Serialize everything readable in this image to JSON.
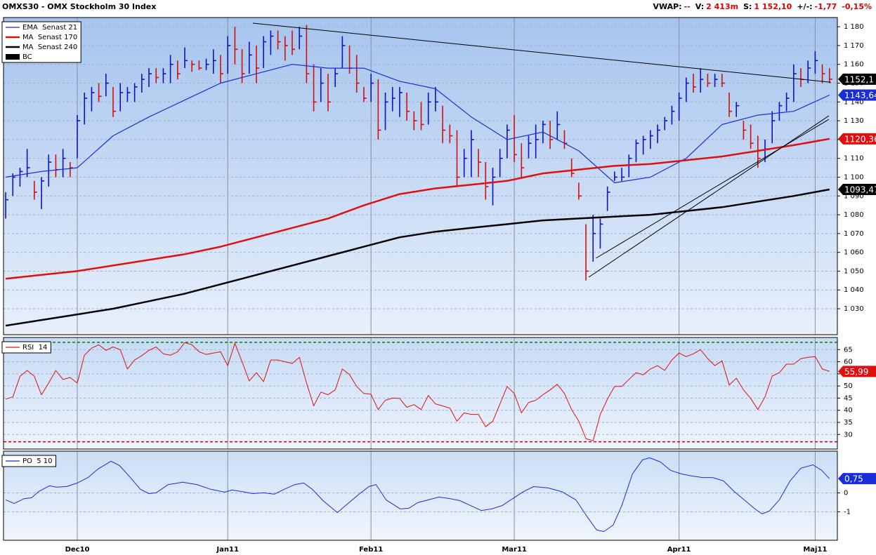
{
  "header": {
    "title": "OMXS30 - OMX Stockholm 30 Index",
    "stats": [
      {
        "label": "VWAP:",
        "value": "--"
      },
      {
        "label": "V:",
        "value": "2 413m"
      },
      {
        "label": "S:",
        "value": "1 152,10"
      },
      {
        "label": "+/-:",
        "value": "-1,77"
      },
      {
        "value": "-0,15%"
      }
    ]
  },
  "chart_data": [
    {
      "type": "hlc",
      "xlim": [
        -0.3,
        116.1
      ],
      "xticks": [
        {
          "value": 10,
          "label": "Dec10"
        },
        {
          "value": 31,
          "label": "Jan11"
        },
        {
          "value": 51,
          "label": "Feb11"
        },
        {
          "value": 71,
          "label": "Mar11"
        },
        {
          "value": 94,
          "label": "Apr11"
        },
        {
          "value": 113,
          "label": "Maj11"
        }
      ],
      "ylim": [
        1016.2,
        1184.9
      ],
      "yticks": [
        {
          "value": 1030,
          "label": "1 030"
        },
        {
          "value": 1040,
          "label": "1 040"
        },
        {
          "value": 1050,
          "label": "1 050"
        },
        {
          "value": 1060,
          "label": "1 060"
        },
        {
          "value": 1070,
          "label": "1 070"
        },
        {
          "value": 1080,
          "label": "1 080"
        },
        {
          "value": 1090,
          "label": "1 090"
        },
        {
          "value": 1100,
          "label": "1 100"
        },
        {
          "value": 1110,
          "label": "1 110"
        },
        {
          "value": 1120,
          "label": "1 120"
        },
        {
          "value": 1130,
          "label": "1 130"
        },
        {
          "value": 1140,
          "label": "1 140"
        },
        {
          "value": 1150,
          "label": "1 150"
        },
        {
          "value": 1160,
          "label": "1 160"
        },
        {
          "value": 1170,
          "label": "1 170"
        },
        {
          "value": 1180,
          "label": "1 180"
        }
      ],
      "grid": true,
      "legend": "upper left",
      "series": [
        {
          "name": "EMA  Senast 21",
          "color": "#1a2ed8",
          "width": 1.2,
          "x": [
            0,
            5,
            10,
            15,
            20,
            25,
            30,
            35,
            40,
            45,
            50,
            55,
            60,
            65,
            70,
            75,
            80,
            85,
            90,
            95,
            100,
            105,
            110,
            115
          ],
          "values": [
            1100,
            1103,
            1105,
            1122,
            1132,
            1141,
            1150,
            1155,
            1160,
            1158,
            1158,
            1151,
            1147,
            1132,
            1120,
            1124,
            1114,
            1097,
            1100,
            1110,
            1128,
            1133,
            1135,
            1143.64
          ]
        },
        {
          "name": "MA  Senast 170",
          "color": "#e01010",
          "width": 2.5,
          "x": [
            0,
            5,
            10,
            15,
            20,
            25,
            30,
            35,
            40,
            45,
            50,
            55,
            60,
            65,
            70,
            75,
            80,
            85,
            90,
            95,
            100,
            105,
            110,
            115
          ],
          "values": [
            1046,
            1048,
            1050,
            1053,
            1056,
            1059,
            1063,
            1068,
            1073,
            1078,
            1085,
            1091,
            1094,
            1096,
            1098,
            1102,
            1104,
            1106,
            1107,
            1109,
            1111,
            1114,
            1117,
            1120.36
          ]
        },
        {
          "name": "MA  Senast 240",
          "color": "#000000",
          "width": 2.5,
          "x": [
            0,
            5,
            10,
            15,
            20,
            25,
            30,
            35,
            40,
            45,
            50,
            55,
            60,
            65,
            70,
            75,
            80,
            85,
            90,
            95,
            100,
            105,
            110,
            115
          ],
          "values": [
            1021,
            1024,
            1027,
            1030,
            1034,
            1038,
            1043,
            1048,
            1053,
            1058,
            1063,
            1068,
            1071,
            1073,
            1075,
            1077,
            1078,
            1079,
            1080,
            1082,
            1084,
            1087,
            1090,
            1093.47
          ]
        }
      ],
      "bars": {
        "name": "BC",
        "color": "#000000",
        "up_color": "#1010c8",
        "down_color": "#d01010",
        "high": [
          1092,
          1102,
          1105,
          1115,
          1098,
          1100,
          1112,
          1112,
          1115,
          1108,
          1133,
          1145,
          1148,
          1150,
          1155,
          1148,
          1150,
          1148,
          1150,
          1155,
          1158,
          1158,
          1158,
          1165,
          1162,
          1169,
          1162,
          1162,
          1163,
          1168,
          1165,
          1175,
          1180,
          1168,
          1172,
          1170,
          1175,
          1178,
          1178,
          1175,
          1178,
          1180,
          1181,
          1160,
          1158,
          1155,
          1158,
          1175,
          1170,
          1165,
          1148,
          1155,
          1152,
          1145,
          1148,
          1148,
          1145,
          1135,
          1140,
          1145,
          1148,
          1138,
          1128,
          1125,
          1115,
          1125,
          1115,
          1108,
          1105,
          1115,
          1128,
          1133,
          1118,
          1122,
          1128,
          1130,
          1130,
          1135,
          1125,
          1110,
          1097,
          1075,
          1080,
          1078,
          1095,
          1103,
          1105,
          1112,
          1120,
          1122,
          1125,
          1128,
          1132,
          1138,
          1145,
          1153,
          1155,
          1158,
          1155,
          1155,
          1155,
          1145,
          1140,
          1130,
          1128,
          1122,
          1120,
          1135,
          1140,
          1145,
          1160,
          1158,
          1162,
          1167,
          1160,
          1158
        ],
        "low": [
          1078,
          1090,
          1095,
          1100,
          1088,
          1083,
          1095,
          1100,
          1100,
          1100,
          1110,
          1128,
          1135,
          1140,
          1143,
          1132,
          1135,
          1140,
          1140,
          1145,
          1148,
          1150,
          1150,
          1150,
          1152,
          1158,
          1156,
          1157,
          1157,
          1155,
          1150,
          1155,
          1160,
          1150,
          1155,
          1150,
          1158,
          1165,
          1168,
          1162,
          1165,
          1168,
          1150,
          1135,
          1140,
          1135,
          1148,
          1158,
          1155,
          1145,
          1140,
          1140,
          1120,
          1125,
          1135,
          1132,
          1130,
          1125,
          1125,
          1128,
          1135,
          1118,
          1118,
          1095,
          1100,
          1100,
          1100,
          1088,
          1085,
          1100,
          1110,
          1108,
          1100,
          1110,
          1110,
          1118,
          1115,
          1120,
          1115,
          1100,
          1088,
          1045,
          1055,
          1062,
          1082,
          1098,
          1098,
          1100,
          1108,
          1112,
          1115,
          1118,
          1125,
          1128,
          1130,
          1140,
          1145,
          1145,
          1148,
          1148,
          1148,
          1132,
          1132,
          1120,
          1115,
          1105,
          1108,
          1118,
          1130,
          1135,
          1140,
          1148,
          1150,
          1155,
          1150,
          1150
        ],
        "close": [
          1088,
          1100,
          1103,
          1105,
          1092,
          1098,
          1108,
          1104,
          1110,
          1105,
          1130,
          1142,
          1145,
          1143,
          1150,
          1135,
          1145,
          1145,
          1148,
          1152,
          1155,
          1153,
          1155,
          1160,
          1155,
          1162,
          1160,
          1158,
          1160,
          1162,
          1155,
          1170,
          1168,
          1155,
          1165,
          1158,
          1172,
          1175,
          1172,
          1170,
          1168,
          1175,
          1155,
          1140,
          1150,
          1140,
          1155,
          1170,
          1158,
          1150,
          1142,
          1150,
          1125,
          1140,
          1142,
          1145,
          1135,
          1130,
          1128,
          1140,
          1140,
          1125,
          1122,
          1100,
          1110,
          1120,
          1108,
          1095,
          1100,
          1110,
          1125,
          1112,
          1105,
          1118,
          1120,
          1128,
          1120,
          1128,
          1118,
          1102,
          1090,
          1050,
          1070,
          1075,
          1092,
          1100,
          1100,
          1110,
          1118,
          1120,
          1122,
          1125,
          1130,
          1135,
          1142,
          1150,
          1148,
          1152,
          1150,
          1152,
          1150,
          1135,
          1138,
          1125,
          1118,
          1110,
          1115,
          1130,
          1138,
          1142,
          1155,
          1152,
          1158,
          1162,
          1155,
          1152.1
        ]
      },
      "trendlines": [
        {
          "color": "#000000",
          "x": [
            34.5,
            115.2
          ],
          "values": [
            1181.9,
            1150.5
          ]
        },
        {
          "color": "#000000",
          "x": [
            81.4,
            114.9
          ],
          "values": [
            1046.8,
            1132.6
          ]
        },
        {
          "color": "#000000",
          "x": [
            82.4,
            114.9
          ],
          "values": [
            1056.9,
            1130.7
          ]
        }
      ],
      "markers": [
        {
          "value": 1152.1,
          "label": "1152,1",
          "color": "#000000"
        },
        {
          "value": 1143.64,
          "label": "1143,64",
          "color": "#1a2ed8"
        },
        {
          "value": 1120.36,
          "label": "1120,36",
          "color": "#e01010"
        },
        {
          "value": 1093.47,
          "label": "1093,47",
          "color": "#000000"
        }
      ]
    },
    {
      "type": "line",
      "ylim": [
        24,
        70
      ],
      "yticks": [
        30,
        35,
        40,
        45,
        50,
        55,
        60,
        65
      ],
      "grid": true,
      "legend": "upper left",
      "levels": [
        {
          "value": 68,
          "color": "#008000"
        },
        {
          "value": 27,
          "color": "#d00000"
        }
      ],
      "series": [
        {
          "name": "RSI  14",
          "color": "#e01010",
          "width": 1,
          "values": [
            44.6,
            45.5,
            54,
            56.4,
            54,
            46.4,
            51.2,
            56.4,
            52.7,
            53.5,
            51.2,
            62.7,
            65.6,
            67,
            64.7,
            66.1,
            65,
            57,
            60.7,
            62.5,
            64.7,
            66.1,
            63.3,
            62.7,
            64.1,
            67.9,
            67,
            64.1,
            63,
            63.6,
            64.1,
            58.4,
            67.6,
            60,
            52.1,
            55.5,
            51.8,
            60.7,
            60.7,
            60,
            59.3,
            61.8,
            51.2,
            41.8,
            47.5,
            46.4,
            48.4,
            57,
            54.7,
            49.8,
            46.9,
            46.6,
            40.3,
            44.1,
            45,
            44.9,
            41.2,
            42.3,
            40.3,
            46.1,
            42.6,
            41.8,
            40.9,
            35.5,
            38.9,
            38.3,
            38.3,
            33.2,
            35.5,
            42.6,
            49.8,
            46.9,
            38.9,
            43.2,
            44.1,
            46.4,
            48.4,
            50.7,
            46.9,
            40.3,
            35.5,
            28.3,
            27.4,
            38.3,
            44.6,
            49.8,
            49.8,
            52.7,
            55.5,
            54.6,
            57,
            58.4,
            56.4,
            60.7,
            63.6,
            62.1,
            63.3,
            65,
            61.3,
            58.4,
            60.4,
            50.4,
            53.2,
            48.4,
            44.9,
            40.3,
            45.5,
            54.1,
            55.5,
            59,
            59,
            61.3,
            61.8,
            62.1,
            57,
            55.99
          ]
        }
      ],
      "markers": [
        {
          "value": 55.99,
          "label": "55,99",
          "color": "#e01010"
        }
      ]
    },
    {
      "type": "line",
      "ylim": [
        -2.5,
        2.2
      ],
      "yticks": [
        0,
        -1
      ],
      "grid": true,
      "legend": "upper left",
      "series": [
        {
          "name": "PO  5 10",
          "color": "#1a2ed8",
          "width": 1,
          "x": [
            0,
            1.2,
            2.6,
            3.6,
            4.6,
            6.1,
            7.1,
            8.5,
            10,
            11.5,
            12.9,
            14.7,
            15.9,
            17.4,
            18.8,
            20,
            21,
            22.7,
            24.7,
            26.7,
            28.6,
            30.6,
            31.6,
            33,
            34.5,
            36,
            37.5,
            38.9,
            40.4,
            41.6,
            42.8,
            44.3,
            46.3,
            47.7,
            49.2,
            50.7,
            51.7,
            53.1,
            55.1,
            56.3,
            57.5,
            59,
            60.5,
            62,
            63.4,
            64.9,
            66.4,
            67.8,
            69.3,
            70.8,
            72.3,
            73.7,
            75.7,
            77.6,
            79.6,
            81.1,
            82.5,
            83.5,
            84.8,
            86,
            87.5,
            88.9,
            89.9,
            91.4,
            92.8,
            94.3,
            95.8,
            97.3,
            98.7,
            100.2,
            101.7,
            103.1,
            104.6,
            105.6,
            106.6,
            108,
            109.5,
            111,
            112.7,
            113.9,
            115
          ],
          "values": [
            -0.37,
            -0.56,
            -0.3,
            -0.26,
            0.07,
            0.37,
            0.3,
            0.33,
            0.52,
            0.81,
            1.26,
            1.67,
            1.44,
            0.81,
            0.19,
            -0.04,
            0,
            0.44,
            0.56,
            0.44,
            0.19,
            0.04,
            0.15,
            0.07,
            -0.04,
            0,
            -0.07,
            0.19,
            0.44,
            0.52,
            0.19,
            -0.41,
            -1.04,
            -0.59,
            -0.11,
            0.33,
            0.44,
            -0.37,
            -0.85,
            -0.81,
            -0.52,
            -0.37,
            -0.22,
            -0.3,
            -0.41,
            -0.67,
            -0.93,
            -0.85,
            -0.67,
            -0.3,
            0.07,
            0.33,
            0.26,
            0.07,
            -0.37,
            -1.22,
            -1.96,
            -2.04,
            -1.7,
            -0.67,
            1.0,
            1.74,
            1.85,
            1.63,
            1.19,
            1.0,
            0.89,
            0.81,
            0.81,
            0.63,
            0.07,
            -0.37,
            -0.85,
            -1.11,
            -0.96,
            -0.37,
            0.63,
            1.3,
            1.48,
            1.19,
            0.75
          ]
        }
      ],
      "markers": [
        {
          "value": 0.75,
          "label": "0,75",
          "color": "#1a2ed8"
        }
      ]
    }
  ]
}
